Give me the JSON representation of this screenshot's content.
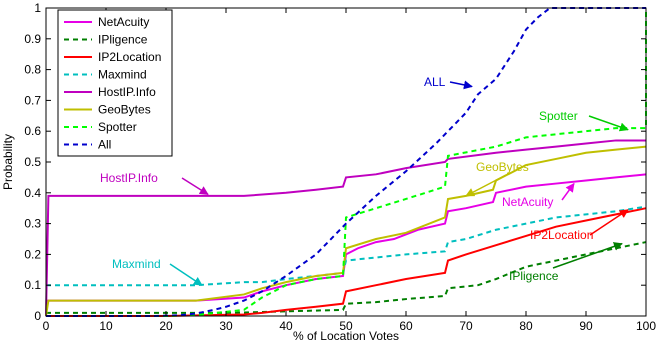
{
  "chart_data": {
    "type": "line",
    "xlabel": "% of Location Votes",
    "ylabel": "Probability",
    "xlim": [
      0,
      100
    ],
    "ylim": [
      0,
      1
    ],
    "xticks": [
      0,
      10,
      20,
      30,
      40,
      50,
      60,
      70,
      80,
      90,
      100
    ],
    "yticks": [
      0,
      0.1,
      0.2,
      0.3,
      0.4,
      0.5,
      0.6,
      0.7,
      0.8,
      0.9,
      1
    ],
    "xtick_labels": [
      "0",
      "10",
      "20",
      "30",
      "40",
      "50",
      "60",
      "70",
      "80",
      "90",
      "100"
    ],
    "ytick_labels": [
      "0",
      "0.1",
      "0.2",
      "0.3",
      "0.4",
      "0.5",
      "0.6",
      "0.7",
      "0.8",
      "0.9",
      "1"
    ],
    "grid": false,
    "legend_position": "top-left",
    "series": [
      {
        "name": "NetAcuity",
        "color": "#e600e6",
        "dash": "solid",
        "x": [
          0,
          25,
          33,
          36,
          40,
          45,
          49.5,
          50,
          52,
          55,
          58,
          62,
          66.5,
          67,
          70,
          74.5,
          75,
          80,
          85,
          90,
          95,
          100
        ],
        "y": [
          0.05,
          0.05,
          0.06,
          0.08,
          0.1,
          0.12,
          0.13,
          0.2,
          0.22,
          0.24,
          0.25,
          0.28,
          0.3,
          0.34,
          0.35,
          0.37,
          0.4,
          0.42,
          0.43,
          0.44,
          0.45,
          0.46
        ]
      },
      {
        "name": "IPligence",
        "color": "#007f00",
        "dash": "dashed",
        "x": [
          0,
          8,
          20,
          30,
          40,
          49.5,
          50,
          55,
          60,
          66.5,
          67,
          72,
          75,
          80,
          85,
          90,
          95,
          100
        ],
        "y": [
          0.01,
          0.01,
          0.01,
          0.01,
          0.015,
          0.02,
          0.04,
          0.045,
          0.055,
          0.065,
          0.09,
          0.1,
          0.12,
          0.16,
          0.18,
          0.2,
          0.22,
          0.24
        ]
      },
      {
        "name": "IP2Location",
        "color": "#ff0000",
        "dash": "solid",
        "x": [
          0,
          20,
          25,
          33,
          36,
          40,
          45,
          49.5,
          50,
          55,
          60,
          66.5,
          67,
          70,
          75,
          80,
          85,
          90,
          95,
          100
        ],
        "y": [
          0,
          0,
          0.002,
          0.005,
          0.01,
          0.02,
          0.03,
          0.04,
          0.08,
          0.1,
          0.12,
          0.14,
          0.18,
          0.2,
          0.23,
          0.26,
          0.29,
          0.31,
          0.33,
          0.35
        ]
      },
      {
        "name": "Maxmind",
        "color": "#00bfbf",
        "dash": "dashed",
        "x": [
          0,
          25,
          33,
          36,
          40,
          45,
          49.5,
          50,
          55,
          60,
          66.5,
          67,
          70,
          75,
          80,
          85,
          90,
          95,
          100
        ],
        "y": [
          0.1,
          0.1,
          0.11,
          0.11,
          0.12,
          0.13,
          0.14,
          0.18,
          0.19,
          0.2,
          0.21,
          0.24,
          0.25,
          0.28,
          0.3,
          0.32,
          0.33,
          0.34,
          0.355
        ]
      },
      {
        "name": "HostIP.Info",
        "color": "#bf00bf",
        "dash": "solid",
        "x": [
          0,
          0.4,
          10,
          25,
          33,
          40,
          45,
          49.5,
          50,
          55,
          60,
          66.5,
          67,
          75,
          80,
          85,
          90,
          95,
          100
        ],
        "y": [
          0,
          0.39,
          0.39,
          0.39,
          0.39,
          0.4,
          0.41,
          0.42,
          0.45,
          0.46,
          0.48,
          0.5,
          0.51,
          0.53,
          0.54,
          0.55,
          0.56,
          0.57,
          0.57
        ]
      },
      {
        "name": "GeoBytes",
        "color": "#bfbf00",
        "dash": "solid",
        "x": [
          0,
          0.4,
          20,
          25,
          33,
          36,
          40,
          45,
          49.5,
          50,
          55,
          60,
          66.5,
          67,
          70,
          74.5,
          75,
          80,
          85,
          90,
          95,
          100
        ],
        "y": [
          0,
          0.05,
          0.05,
          0.05,
          0.07,
          0.09,
          0.11,
          0.13,
          0.14,
          0.22,
          0.25,
          0.27,
          0.32,
          0.38,
          0.39,
          0.41,
          0.44,
          0.49,
          0.51,
          0.53,
          0.54,
          0.55
        ]
      },
      {
        "name": "Spotter",
        "color": "#00ff00",
        "dash": "dashed",
        "x": [
          0,
          20,
          25,
          33,
          36,
          40,
          45,
          49.5,
          50,
          55,
          60,
          66.5,
          67,
          75,
          80,
          85,
          90,
          95,
          100,
          100
        ],
        "y": [
          0,
          0,
          0.003,
          0.02,
          0.06,
          0.1,
          0.12,
          0.13,
          0.32,
          0.35,
          0.38,
          0.42,
          0.52,
          0.55,
          0.58,
          0.59,
          0.6,
          0.61,
          0.61,
          1.0
        ]
      },
      {
        "name": "All",
        "color": "#0000cc",
        "dash": "dashed",
        "x": [
          0,
          18,
          22,
          25,
          28,
          30,
          33,
          36,
          40,
          45,
          50,
          55,
          60,
          65,
          70,
          72,
          75,
          78,
          80,
          82,
          84,
          100
        ],
        "y": [
          0,
          0,
          0.002,
          0.008,
          0.02,
          0.03,
          0.05,
          0.08,
          0.13,
          0.2,
          0.3,
          0.39,
          0.47,
          0.56,
          0.66,
          0.72,
          0.77,
          0.86,
          0.93,
          0.97,
          1.0,
          1.0
        ]
      }
    ],
    "annotations": [
      {
        "text": "HostIP.Info",
        "color": "#bf00bf",
        "series": "HostIP.Info",
        "target": [
          27,
          0.395
        ]
      },
      {
        "text": "Maxmind",
        "color": "#00bfbf",
        "series": "Maxmind",
        "target": [
          26,
          0.1
        ]
      },
      {
        "text": "ALL",
        "color": "#0000cc",
        "series": "All",
        "target": [
          71,
          0.745
        ]
      },
      {
        "text": "Spotter",
        "color": "#00cc00",
        "series": "Spotter",
        "target": [
          97,
          0.605
        ]
      },
      {
        "text": "GeoBytes",
        "color": "#bfbf00",
        "series": "GeoBytes",
        "target": [
          70,
          0.39
        ]
      },
      {
        "text": "NetAcuity",
        "color": "#e600e6",
        "series": "NetAcuity",
        "target": [
          88,
          0.43
        ]
      },
      {
        "text": "IP2Location",
        "color": "#ff0000",
        "series": "IP2Location",
        "target": [
          97,
          0.345
        ]
      },
      {
        "text": "IPligence",
        "color": "#007f00",
        "series": "IPligence",
        "target": [
          96,
          0.235
        ]
      }
    ]
  }
}
